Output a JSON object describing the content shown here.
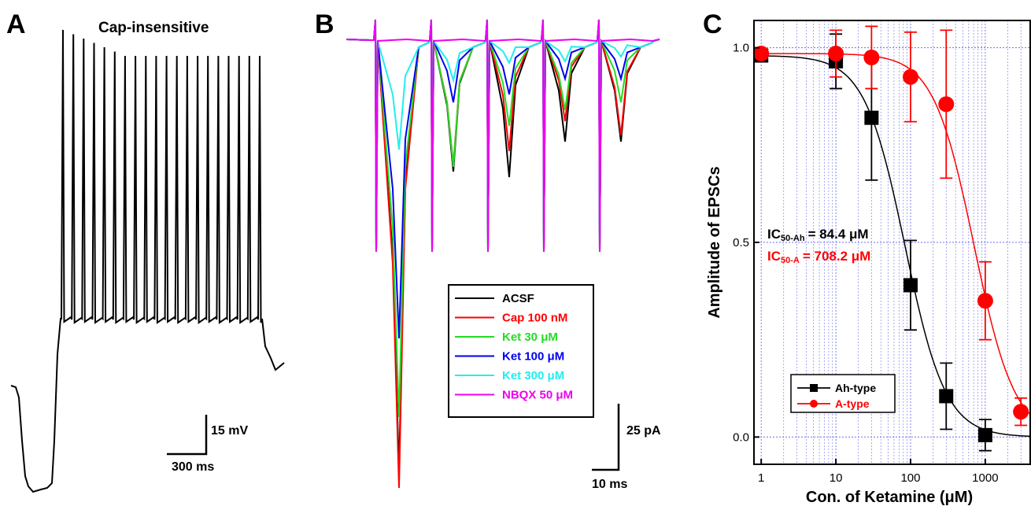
{
  "panels": {
    "a": {
      "letter": "A",
      "title": "Cap-insensitive",
      "title_color": "#0a1a80",
      "scalebar_y": "15 mV",
      "scalebar_x": "300 ms",
      "spike_count": 20
    },
    "b": {
      "letter": "B",
      "scalebar_y": "25 pA",
      "scalebar_x": "10 ms",
      "legend": [
        {
          "label": "ACSF",
          "color": "#000000"
        },
        {
          "label": "Cap 100 nM",
          "color": "#ff0000"
        },
        {
          "label": "Ket 30 μM",
          "color": "#22dd22"
        },
        {
          "label": "Ket 100 μM",
          "color": "#0000ee"
        },
        {
          "label": "Ket 300 μM",
          "color": "#22eeee"
        },
        {
          "label": "NBQX 50 μM",
          "color": "#ee00ee"
        }
      ]
    },
    "c": {
      "letter": "C",
      "ic50_ah_label": "IC",
      "ic50_ah_sub": "50-Ah",
      "ic50_ah_value": "= 84.4 μM",
      "ic50_a_label": "IC",
      "ic50_a_sub": "50-A",
      "ic50_a_value": "= 708.2 μM"
    }
  },
  "chart_data": {
    "type": "scatter",
    "xlabel": "Con. of Ketamine (μM)",
    "ylabel": "Amplitude of EPSCs",
    "xscale": "log",
    "xlim": [
      0.8,
      4000
    ],
    "ylim": [
      -0.07,
      1.07
    ],
    "x_ticks": [
      "1",
      "10",
      "100",
      "1000"
    ],
    "y_ticks": [
      "0.0",
      "0.5",
      "1.0"
    ],
    "grid": true,
    "legend_position": "bottom-left",
    "series": [
      {
        "name": "Ah-type",
        "color": "#000000",
        "marker": "square",
        "x": [
          1,
          10,
          30,
          100,
          300,
          1000
        ],
        "y": [
          0.98,
          0.965,
          0.82,
          0.39,
          0.105,
          0.005
        ],
        "err": [
          0.01,
          0.07,
          0.16,
          0.115,
          0.085,
          0.04
        ],
        "ic50": 84.4
      },
      {
        "name": "A-type",
        "color": "#ff0000",
        "marker": "circle",
        "x": [
          1,
          10,
          30,
          100,
          300,
          1000,
          3000
        ],
        "y": [
          0.985,
          0.985,
          0.975,
          0.925,
          0.855,
          0.35,
          0.065
        ],
        "err": [
          0.01,
          0.06,
          0.08,
          0.115,
          0.19,
          0.1,
          0.035
        ],
        "ic50": 708.2
      }
    ]
  }
}
